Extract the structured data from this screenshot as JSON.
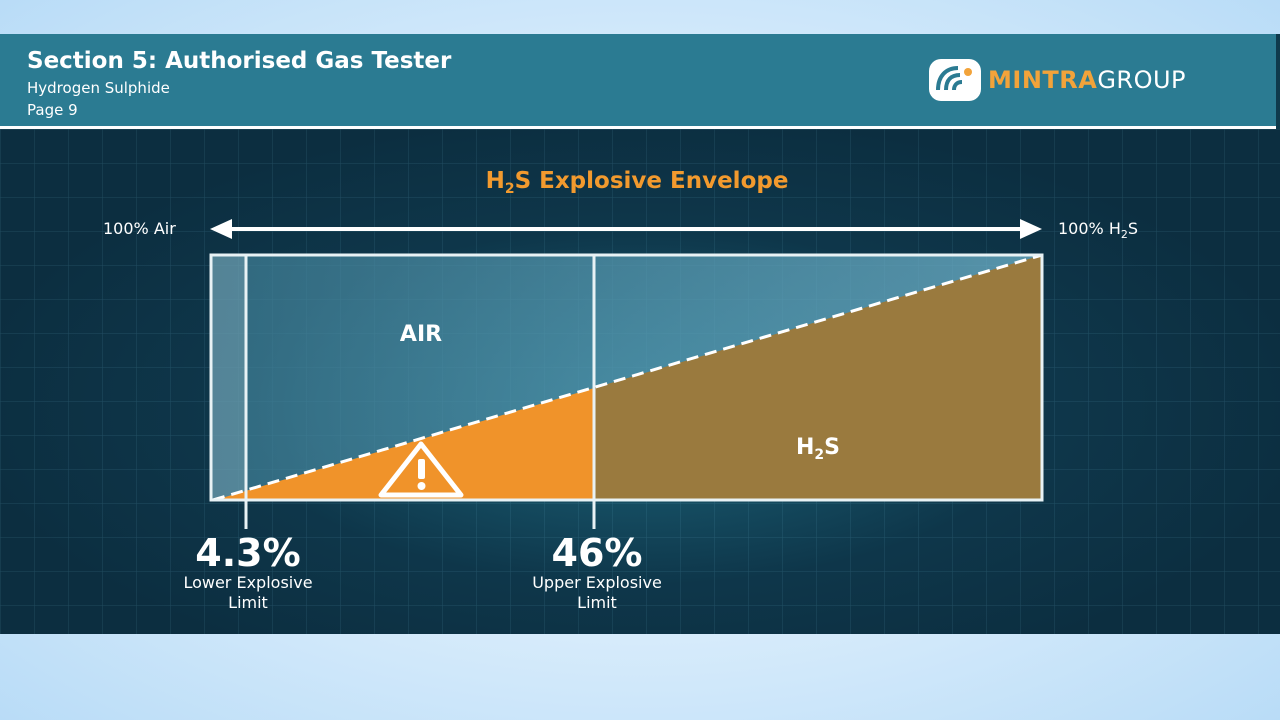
{
  "header": {
    "title": "Section 5: Authorised Gas Tester",
    "subtitle": "Hydrogen Sulphide",
    "page": "Page 9"
  },
  "logo": {
    "text_a": "MINTRA",
    "text_b": "GROUP"
  },
  "diagram": {
    "title_pre": "H",
    "title_sub": "2",
    "title_post": "S Explosive Envelope",
    "left_end": "100% Air",
    "right_end_pre": "100% H",
    "right_end_sub": "2",
    "right_end_post": "S",
    "air_label": "AIR",
    "gas_label_pre": "H",
    "gas_label_sub": "2",
    "gas_label_post": "S",
    "lel_value": "4.3%",
    "lel_label_line1": "Lower Explosive",
    "lel_label_line2": "Limit",
    "uel_value": "46%",
    "uel_label_line1": "Upper Explosive",
    "uel_label_line2": "Limit",
    "warning_icon": "warning-triangle-icon"
  },
  "colors": {
    "header_bg": "#2b7b92",
    "title_accent": "#f29a2e",
    "explosive_fill": "#f0932a",
    "gas_fill": "#9a7a3e",
    "air_fill": "#5a9cb5"
  }
}
